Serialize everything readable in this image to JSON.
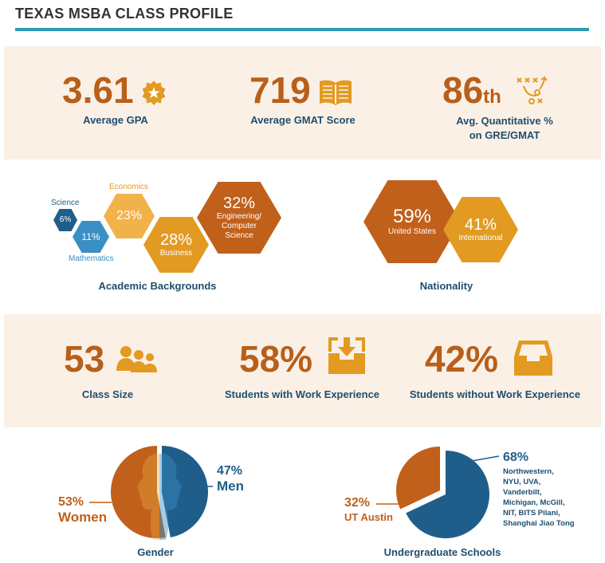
{
  "title": "TEXAS MSBA CLASS PROFILE",
  "colors": {
    "orange_dark": "#b85f1a",
    "orange": "#e29a22",
    "orange_light": "#f1b24a",
    "blue_dark": "#1f5e8a",
    "blue": "#3a8fc4",
    "teal": "#2e9ab3",
    "label": "#1f4e6e",
    "band": "#fbf0e6"
  },
  "stats_top": {
    "gpa": {
      "value": "3.61",
      "label": "Average GPA",
      "icon": "star-badge-icon"
    },
    "gmat": {
      "value": "719",
      "label": "Average GMAT Score",
      "icon": "open-book-icon"
    },
    "quant": {
      "value": "86",
      "suffix": "th",
      "label_line1": "Avg. Quantitative %",
      "label_line2": "on GRE/GMAT",
      "icon": "strategy-play-icon"
    }
  },
  "academic": {
    "label": "Academic Backgrounds",
    "items": [
      {
        "name": "Science",
        "pct": "6%"
      },
      {
        "name": "Mathematics",
        "pct": "11%"
      },
      {
        "name": "Economics",
        "pct": "23%"
      },
      {
        "name": "Business",
        "pct": "28%"
      },
      {
        "name_line1": "Engineering/",
        "name_line2": "Computer",
        "name_line3": "Science",
        "pct": "32%"
      }
    ]
  },
  "nationality": {
    "label": "Nationality",
    "items": [
      {
        "name": "United States",
        "pct": "59%"
      },
      {
        "name": "International",
        "pct": "41%"
      }
    ]
  },
  "stats_mid": {
    "class_size": {
      "value": "53",
      "label": "Class Size",
      "icon": "people-group-icon"
    },
    "with_exp": {
      "value": "58%",
      "label": "Students with Work Experience",
      "icon": "inbox-download-icon"
    },
    "without_exp": {
      "value": "42%",
      "label": "Students without Work Experience",
      "icon": "empty-tray-icon"
    }
  },
  "gender": {
    "label": "Gender",
    "women": {
      "pct": "53%",
      "name": "Women",
      "value": 53
    },
    "men": {
      "pct": "47%",
      "name": "Men",
      "value": 47
    }
  },
  "schools": {
    "label": "Undergraduate Schools",
    "ut": {
      "pct": "32%",
      "name": "UT Austin",
      "value": 32
    },
    "other": {
      "pct": "68%",
      "value": 68,
      "lines": [
        "Northwestern,",
        "NYU, UVA,",
        "Vanderbilt,",
        "Michigan, McGill,",
        "NIT, BITS Pilani,",
        "Shanghai Jiao Tong"
      ]
    }
  }
}
